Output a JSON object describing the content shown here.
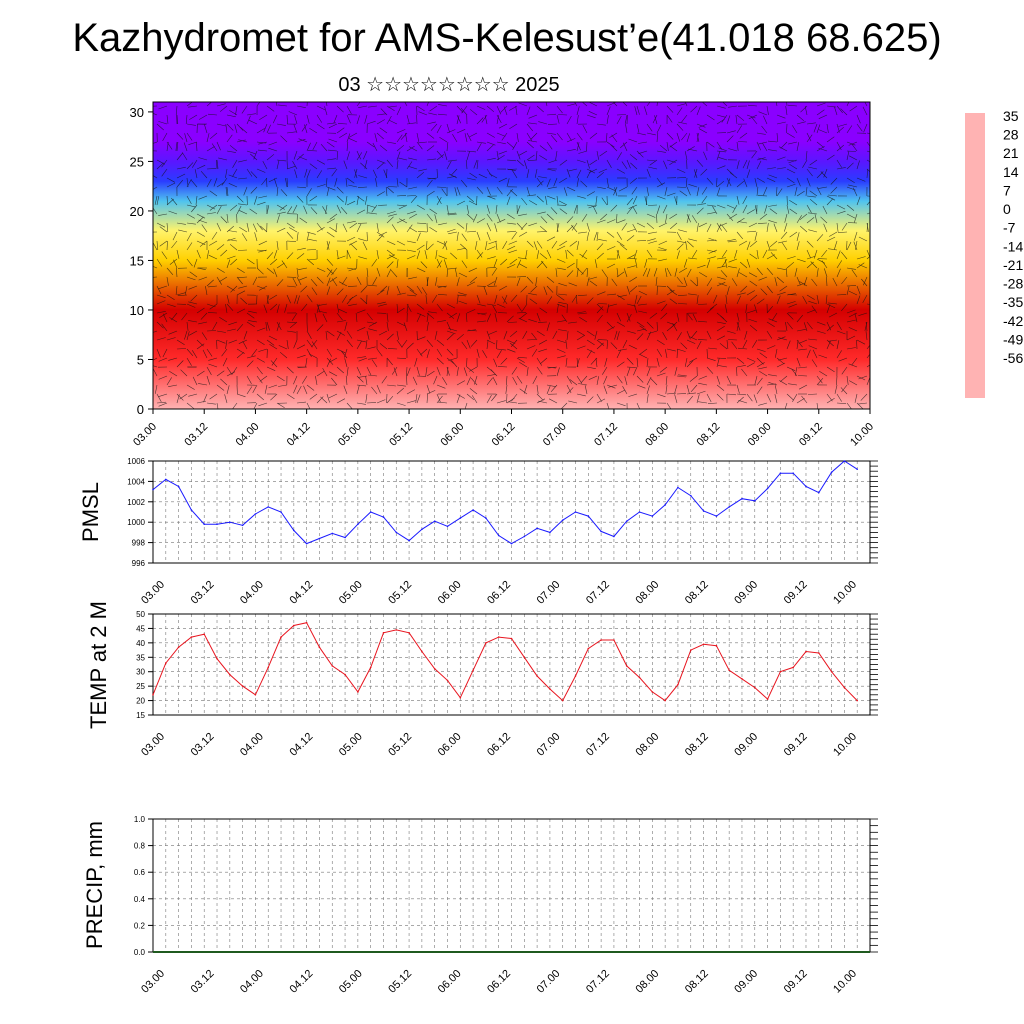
{
  "title": "Kazhydromet for AMS-Kelesust’e(41.018 68.625)",
  "subtitle": "03 ☆☆☆☆☆☆☆☆ 2025",
  "colors": {
    "pmsl_line": "#1a1aff",
    "temp_line": "#e8141e",
    "grid": "#555555",
    "precip_baseline": "#1f5a1f"
  },
  "chart_data": [
    {
      "type": "heatmap",
      "title": "",
      "xlabel": "",
      "ylabel": "",
      "x_ticks": [
        "03.00",
        "03.12",
        "04.00",
        "04.12",
        "05.00",
        "05.12",
        "06.00",
        "06.12",
        "07.00",
        "07.12",
        "08.00",
        "08.12",
        "09.00",
        "09.12",
        "10.00"
      ],
      "y_ticks": [
        "0",
        "5",
        "10",
        "15",
        "20",
        "25",
        "30"
      ],
      "ylim": [
        0,
        31
      ],
      "overlay": "wind barbs",
      "colorbar_labels": [
        "35",
        "28",
        "21",
        "14",
        "7",
        "0",
        "-7",
        "-14",
        "-21",
        "-28",
        "-35",
        "-42",
        "-49",
        "-56"
      ],
      "colorbar_colors": [
        "#ffb3b3",
        "#ff2a2a",
        "#d40000",
        "#ff5a00",
        "#ff9a00",
        "#ffd000",
        "#fff36a",
        "#b8e2ef",
        "#4fc3ef",
        "#1f8fff",
        "#2a3cff",
        "#5a16ff",
        "#8a00ff"
      ],
      "profile": [
        {
          "level": 0,
          "value": 33
        },
        {
          "level": 5,
          "value": 28
        },
        {
          "level": 10,
          "value": 18
        },
        {
          "level": 15,
          "value": 0
        },
        {
          "level": 18,
          "value": -10
        },
        {
          "level": 21,
          "value": -24
        },
        {
          "level": 23,
          "value": -38
        },
        {
          "level": 25,
          "value": -52
        },
        {
          "level": 27,
          "value": -56
        },
        {
          "level": 31,
          "value": -58
        }
      ]
    },
    {
      "type": "line",
      "ylabel": "PMSL",
      "ylim": [
        996,
        1006
      ],
      "y_ticks": [
        "996",
        "998",
        "1000",
        "1002",
        "1004",
        "1006"
      ],
      "x_ticks": [
        "03.00",
        "03.12",
        "04.00",
        "04.12",
        "05.00",
        "05.12",
        "06.00",
        "06.12",
        "07.00",
        "07.12",
        "08.00",
        "08.12",
        "09.00",
        "09.12",
        "10.00"
      ],
      "x": [
        0,
        3,
        6,
        9,
        12,
        15,
        18,
        21,
        24,
        27,
        30,
        33,
        36,
        39,
        42,
        45,
        48,
        51,
        54,
        57,
        60,
        63,
        66,
        69,
        72,
        75,
        78,
        81,
        84,
        87,
        90,
        93,
        96,
        99,
        102,
        105,
        108,
        111,
        114,
        117,
        120,
        123,
        126,
        129,
        132,
        135,
        138,
        141,
        144,
        147,
        150,
        153,
        156,
        159,
        162,
        165
      ],
      "series": [
        {
          "values": [
            1003.2,
            1004.2,
            1003.5,
            1001.2,
            999.8,
            999.8,
            1000.0,
            999.7,
            1000.8,
            1001.5,
            1001.0,
            999.2,
            997.9,
            998.4,
            998.9,
            998.5,
            999.8,
            1001.0,
            1000.5,
            999.0,
            998.2,
            999.3,
            1000.1,
            999.6,
            1000.4,
            1001.2,
            1000.4,
            998.7,
            997.9,
            998.6,
            999.4,
            999.0,
            1000.2,
            1001.0,
            1000.6,
            999.1,
            998.6,
            1000.1,
            1001.0,
            1000.6,
            1001.7,
            1003.4,
            1002.6,
            1001.1,
            1000.6,
            1001.5,
            1002.3,
            1002.1,
            1003.3,
            1004.8,
            1004.8,
            1003.5,
            1002.9,
            1004.9,
            1006.0,
            1005.2
          ]
        }
      ]
    },
    {
      "type": "line",
      "ylabel": "TEMP at 2 M",
      "ylim": [
        15,
        50
      ],
      "y_ticks": [
        "15",
        "20",
        "25",
        "30",
        "35",
        "40",
        "45",
        "50"
      ],
      "x_ticks": [
        "03.00",
        "03.12",
        "04.00",
        "04.12",
        "05.00",
        "05.12",
        "06.00",
        "06.12",
        "07.00",
        "07.12",
        "08.00",
        "08.12",
        "09.00",
        "09.12",
        "10.00"
      ],
      "x": [
        0,
        3,
        6,
        9,
        12,
        15,
        18,
        21,
        24,
        27,
        30,
        33,
        36,
        39,
        42,
        45,
        48,
        51,
        54,
        57,
        60,
        63,
        66,
        69,
        72,
        75,
        78,
        81,
        84,
        87,
        90,
        93,
        96,
        99,
        102,
        105,
        108,
        111,
        114,
        117,
        120,
        123,
        126,
        129,
        132,
        135,
        138,
        141,
        144,
        147,
        150,
        153,
        156,
        159,
        162,
        165
      ],
      "series": [
        {
          "values": [
            22,
            33,
            38.5,
            42,
            43,
            34.5,
            29,
            25,
            22,
            31.5,
            42,
            46,
            47,
            38.5,
            32,
            29,
            23,
            31.5,
            43.5,
            44.5,
            43.5,
            37,
            31,
            27,
            21,
            30.5,
            40,
            42,
            41.5,
            35,
            28.5,
            24,
            20,
            28.5,
            38,
            41,
            41,
            32,
            28,
            23,
            20,
            25.5,
            37.5,
            39.5,
            39,
            30.5,
            27.5,
            24.5,
            20.5,
            30,
            31.5,
            37,
            36.5,
            30,
            24.5,
            20
          ]
        }
      ]
    },
    {
      "type": "bar",
      "ylabel": "PRECIP, mm",
      "ylim": [
        0.0,
        1.0
      ],
      "y_ticks": [
        "0.0",
        "0.2",
        "0.4",
        "0.6",
        "0.8",
        "1.0"
      ],
      "x_ticks": [
        "03.00",
        "03.12",
        "04.00",
        "04.12",
        "05.00",
        "05.12",
        "06.00",
        "06.12",
        "07.00",
        "07.12",
        "08.00",
        "08.12",
        "09.00",
        "09.12",
        "10.00"
      ],
      "series": [
        {
          "values": [
            0,
            0,
            0,
            0,
            0,
            0,
            0,
            0,
            0,
            0,
            0,
            0,
            0,
            0,
            0,
            0,
            0,
            0,
            0,
            0,
            0,
            0,
            0,
            0,
            0,
            0,
            0,
            0,
            0,
            0,
            0,
            0,
            0,
            0,
            0,
            0,
            0,
            0,
            0,
            0,
            0,
            0,
            0,
            0,
            0,
            0,
            0,
            0,
            0,
            0,
            0,
            0,
            0,
            0,
            0,
            0
          ]
        }
      ]
    }
  ]
}
